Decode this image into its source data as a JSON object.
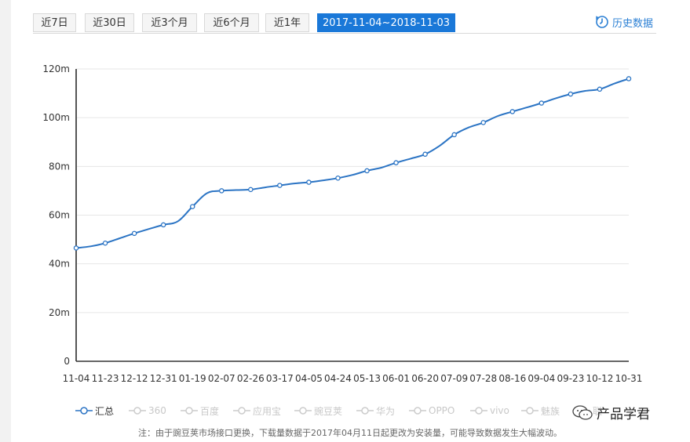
{
  "tabs": [
    {
      "label": "近7日",
      "active": false
    },
    {
      "label": "近30日",
      "active": false
    },
    {
      "label": "近3个月",
      "active": false
    },
    {
      "label": "近6个月",
      "active": false
    },
    {
      "label": "近1年",
      "active": false
    },
    {
      "label": "2017-11-04~2018-11-03",
      "active": true
    }
  ],
  "history_link": {
    "label": "历史数据",
    "icon": "history-clock-icon"
  },
  "chart_data": {
    "type": "line",
    "title": "",
    "xlabel": "",
    "ylabel": "",
    "ylim": [
      0,
      120
    ],
    "yticks": [
      0,
      20,
      40,
      60,
      80,
      100,
      120
    ],
    "ytick_labels": [
      "0",
      "20m",
      "40m",
      "60m",
      "80m",
      "100m",
      "120m"
    ],
    "xtick_labels": [
      "11-04",
      "11-23",
      "12-12",
      "12-31",
      "01-19",
      "02-07",
      "02-26",
      "03-17",
      "04-05",
      "04-24",
      "05-13",
      "06-01",
      "06-20",
      "07-09",
      "07-28",
      "08-16",
      "09-04",
      "09-23",
      "10-12",
      "10-31"
    ],
    "grid": true,
    "accent_color": "#2b74c4",
    "series": [
      {
        "name": "汇总",
        "x": [
          0,
          1,
          2,
          3,
          4,
          5,
          6,
          7,
          8,
          9,
          10,
          11,
          12,
          13,
          14,
          15,
          16,
          17,
          18,
          19,
          20,
          21,
          22,
          23,
          24,
          25,
          26,
          27,
          28,
          29,
          30,
          31,
          32,
          33,
          34,
          35,
          36,
          37,
          38
        ],
        "values": [
          46.5,
          47.2,
          48.5,
          50.5,
          52.5,
          54.3,
          56.0,
          57.5,
          63.5,
          69.0,
          70.0,
          70.3,
          70.5,
          71.4,
          72.2,
          73.0,
          73.5,
          74.3,
          75.2,
          76.5,
          78.2,
          79.5,
          81.5,
          83.2,
          85.0,
          88.5,
          93.0,
          96.0,
          98.0,
          100.7,
          102.5,
          104.2,
          106.0,
          108.0,
          109.7,
          111.0,
          111.7,
          114.0,
          116.0
        ],
        "marker_x": [
          0,
          2,
          4,
          6,
          8,
          10,
          12,
          14,
          16,
          18,
          20,
          22,
          24,
          26,
          28,
          30,
          32,
          34,
          36,
          38
        ]
      }
    ]
  },
  "legend": [
    {
      "label": "汇总",
      "active": true
    },
    {
      "label": "360",
      "active": false
    },
    {
      "label": "百度",
      "active": false
    },
    {
      "label": "应用宝",
      "active": false
    },
    {
      "label": "豌豆荚",
      "active": false
    },
    {
      "label": "华为",
      "active": false
    },
    {
      "label": "OPPO",
      "active": false
    },
    {
      "label": "vivo",
      "active": false
    },
    {
      "label": "魅族",
      "active": false
    },
    {
      "label": "联",
      "active": false
    }
  ],
  "note": "注：由于豌豆荚市场接口更换，下载量数据于2017年04月11日起更改为安装量，可能导致数据发生大幅波动。",
  "watermark": "产品学君"
}
